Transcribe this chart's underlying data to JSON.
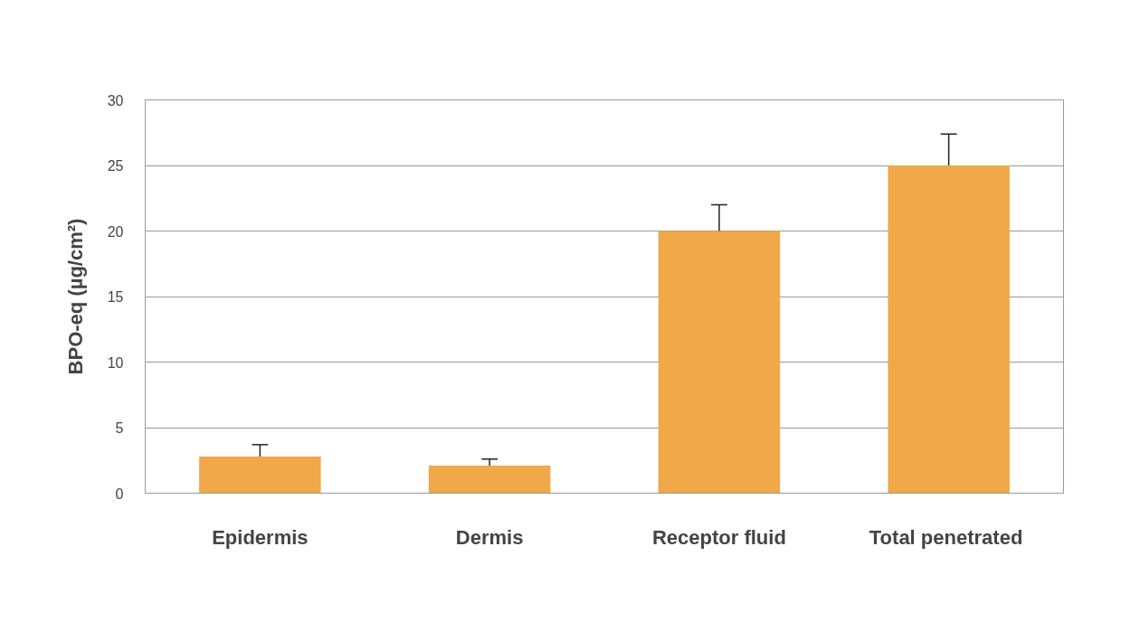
{
  "chart_data": {
    "type": "bar",
    "ylabel": "BPO-eq (µg/cm²)",
    "categories": [
      "Epidermis",
      "Dermis",
      "Receptor fluid",
      "Total  penetrated"
    ],
    "values": [
      2.8,
      2.1,
      20.0,
      25.0
    ],
    "errors": [
      [
        2.8,
        3.7
      ],
      [
        2.1,
        2.6
      ],
      [
        20.0,
        22.0
      ],
      [
        25.0,
        27.4
      ]
    ],
    "color": "#f0a848",
    "ylim": [
      0,
      30
    ],
    "yticks": [
      0,
      5,
      10,
      15,
      20,
      25,
      30
    ],
    "grid": "y"
  }
}
